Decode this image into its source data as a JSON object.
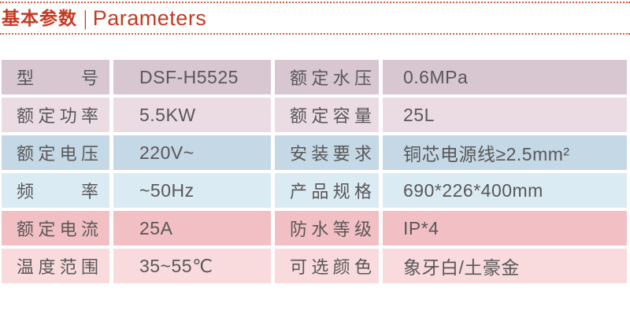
{
  "header": {
    "title_zh": "基本参数",
    "separator": "|",
    "title_en": "Parameters"
  },
  "colors": {
    "title_red": "#c43a22",
    "rule_red": "#d55b41",
    "text_gray": "#595757",
    "row_mauve_dark": "#d8c6d1",
    "row_mauve_light": "#ebdce4",
    "row_blue_dark": "#c4d8e6",
    "row_blue_light": "#dbebf3",
    "row_pink_dark": "#f2c0c4",
    "row_pink_light": "#f9dbde"
  },
  "table": {
    "rows": [
      {
        "row_color": "#d8c6d1",
        "left_label": "型号",
        "left_value": "DSF-H5525",
        "right_label": "额定水压",
        "right_value": "0.6MPa"
      },
      {
        "row_color": "#ebdce4",
        "left_label": "额定功率",
        "left_value": "5.5KW",
        "right_label": "额定容量",
        "right_value": "25L"
      },
      {
        "row_color": "#c4d8e6",
        "left_label": "额定电压",
        "left_value": "220V~",
        "right_label": "安装要求",
        "right_value": "铜芯电源线≥2.5mm²"
      },
      {
        "row_color": "#dbebf3",
        "left_label": "频率",
        "left_value": "~50Hz",
        "right_label": "产品规格",
        "right_value": "690*226*400mm"
      },
      {
        "row_color": "#f2c0c4",
        "left_label": "额定电流",
        "left_value": "25A",
        "right_label": "防水等级",
        "right_value": "IP*4"
      },
      {
        "row_color": "#f9dbde",
        "left_label": "温度范围",
        "left_value": "35~55℃",
        "right_label": "可选颜色",
        "right_value": "象牙白/土豪金"
      }
    ]
  }
}
